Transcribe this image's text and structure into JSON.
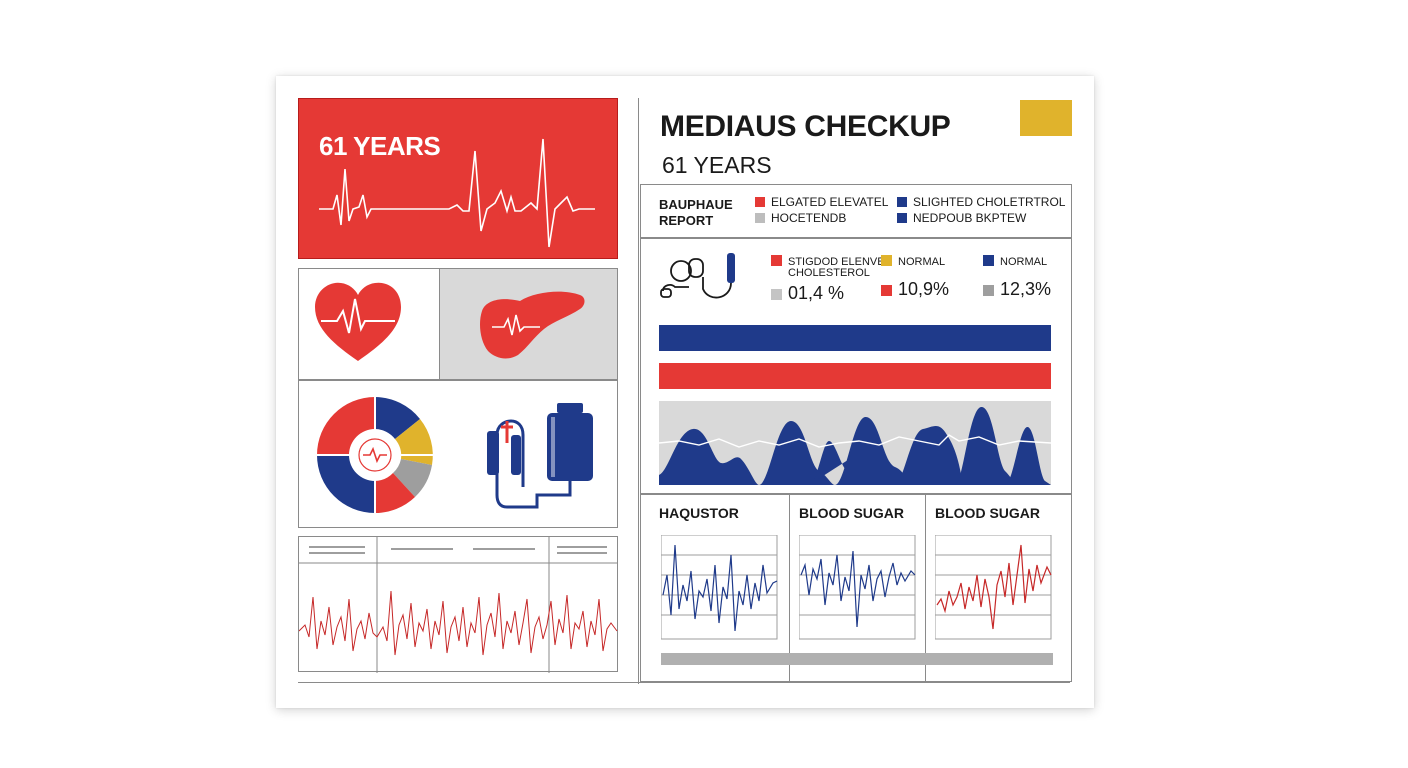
{
  "colors": {
    "red": "#e53935",
    "navy": "#1f3a8a",
    "gold": "#e0b32c",
    "gray": "#bdbdbd",
    "light_gray": "#d9d9d9"
  },
  "hero": {
    "age": "61 YEARS"
  },
  "header": {
    "title": "MEDIAUS CHECKUP",
    "subtitle": "61 YEARS"
  },
  "report": {
    "label_line1": "BAUPHAUE",
    "label_line2": "REPORT",
    "legend": [
      {
        "label": "ELGATED ELEVATEL",
        "color": "#e53935"
      },
      {
        "label": "HOCETENDB",
        "color": "#bdbdbd"
      },
      {
        "label": "SLIGHTED CHOLETRTROL",
        "color": "#1f3a8a"
      },
      {
        "label": "NEDPOUB BKPTEW",
        "color": "#1f3a8a"
      }
    ]
  },
  "stats": {
    "col1_label_line1": "STIGDOD ELENVED",
    "col1_label_line2": "CHOLESTEROL",
    "col1_value": "01,4 %",
    "col2_label": "NORMAL",
    "col2_value": "10,9%",
    "col3_label": "NORMAL",
    "col3_value": "12,3%"
  },
  "mini_charts": [
    {
      "title": "HAQUSTOR"
    },
    {
      "title": "BLOOD SUGAR"
    },
    {
      "title": "BLOOD SUGAR"
    }
  ],
  "icons": {
    "heart": "heart-icon",
    "liver": "liver-icon",
    "donut": "donut-chart-icon",
    "iv": "iv-bag-icon",
    "stethoscope": "stethoscope-icon"
  }
}
